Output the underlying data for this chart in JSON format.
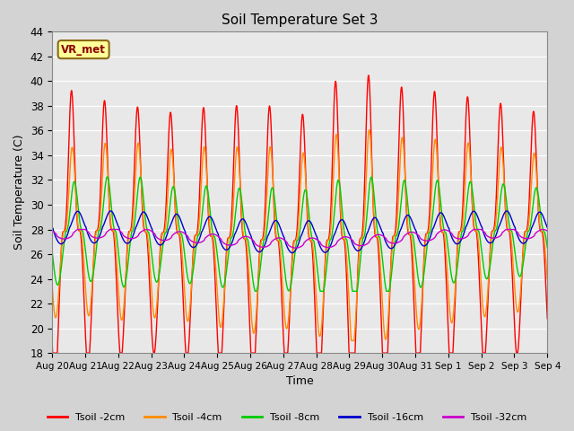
{
  "title": "Soil Temperature Set 3",
  "xlabel": "Time",
  "ylabel": "Soil Temperature (C)",
  "ylim": [
    18,
    44
  ],
  "yticks": [
    18,
    20,
    22,
    24,
    26,
    28,
    30,
    32,
    34,
    36,
    38,
    40,
    42,
    44
  ],
  "annotation_text": "VR_met",
  "colors": {
    "Tsoil -2cm": "#FF0000",
    "Tsoil -4cm": "#FF8C00",
    "Tsoil -8cm": "#00CC00",
    "Tsoil -16cm": "#0000CC",
    "Tsoil -32cm": "#CC00CC"
  },
  "plot_bg_color": "#E8E8E8",
  "fig_bg_color": "#D3D3D3",
  "n_days": 15,
  "samples_per_day": 144,
  "base_mean_2cm": 27.5,
  "base_mean_4cm": 27.5,
  "base_mean_8cm": 27.5,
  "base_mean_16cm": 27.8,
  "base_mean_32cm": 27.3,
  "amp_2cm": 11.5,
  "amp_4cm": 8.0,
  "amp_8cm": 4.5,
  "amp_16cm": 1.3,
  "amp_32cm": 0.4,
  "peak_hour_2cm": 14.0,
  "peak_hour_4cm": 14.5,
  "peak_hour_8cm": 16.0,
  "peak_hour_16cm": 18.5,
  "peak_hour_32cm": 21.0,
  "sharpness": 3.5
}
